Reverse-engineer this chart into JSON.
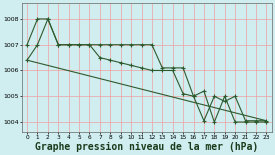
{
  "bg_color": "#d0eef0",
  "grid_color": "#f0a0a0",
  "line_color": "#2d5a2d",
  "xlabel": "Graphe pression niveau de la mer (hPa)",
  "xlabel_fontsize": 7,
  "xlim": [
    -0.5,
    23.5
  ],
  "ylim": [
    1003.6,
    1008.6
  ],
  "yticks": [
    1004,
    1005,
    1006,
    1007,
    1008
  ],
  "xticks": [
    0,
    1,
    2,
    3,
    4,
    5,
    6,
    7,
    8,
    9,
    10,
    11,
    12,
    13,
    14,
    15,
    16,
    17,
    18,
    19,
    20,
    21,
    22,
    23
  ],
  "line1_x": [
    0,
    1,
    2,
    3,
    4,
    5,
    6,
    7,
    8,
    9,
    10,
    11,
    12,
    13,
    14,
    15,
    16,
    17,
    18,
    19,
    20,
    21,
    22,
    23
  ],
  "line1_y": [
    1007.0,
    1008.0,
    1008.0,
    1007.0,
    1007.0,
    1007.0,
    1007.0,
    1007.0,
    1007.0,
    1007.0,
    1007.0,
    1007.0,
    1007.0,
    1006.1,
    1006.1,
    1006.1,
    1005.0,
    1005.2,
    1004.0,
    1005.0,
    1004.0,
    1004.0,
    1004.0,
    1004.0
  ],
  "line2_x": [
    0,
    1,
    2,
    3,
    4,
    5,
    6,
    7,
    8,
    9,
    10,
    11,
    12,
    13,
    14,
    15,
    16,
    17,
    18,
    19,
    20,
    21,
    22,
    23
  ],
  "line2_y": [
    1006.4,
    1007.0,
    1008.0,
    1007.0,
    1007.0,
    1007.0,
    1007.0,
    1006.5,
    1006.4,
    1006.3,
    1006.2,
    1006.1,
    1006.0,
    1006.0,
    1006.0,
    1005.1,
    1005.0,
    1004.05,
    1005.0,
    1004.8,
    1005.0,
    1004.05,
    1004.05,
    1004.05
  ],
  "line3_x": [
    0,
    23
  ],
  "line3_y": [
    1006.4,
    1004.05
  ]
}
